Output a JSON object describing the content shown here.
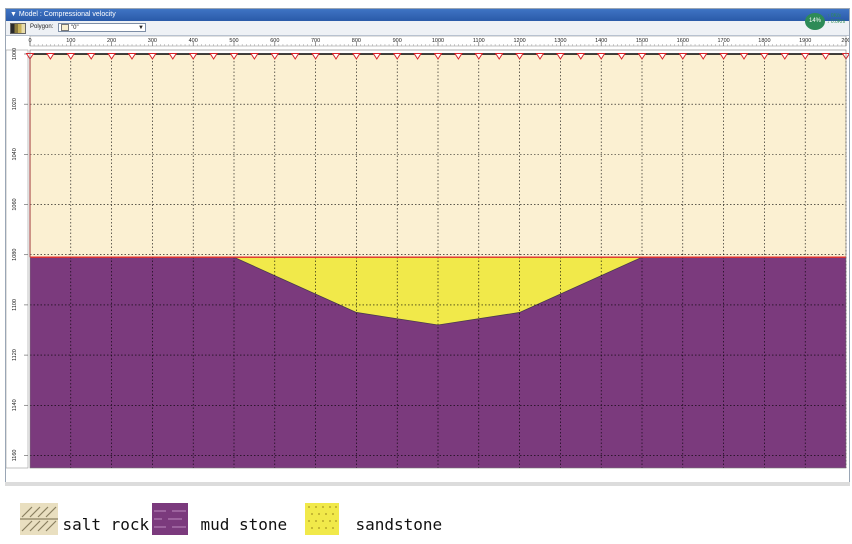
{
  "window": {
    "title": "▼ Model : Compressional velocity",
    "toolbar": {
      "polygon_label": "Polygon:",
      "polygon_value": "\"0\""
    },
    "status": {
      "percent": "14%",
      "rate_up": "0K/s",
      "rate_down": "0.0K/s"
    }
  },
  "plot": {
    "x_ticks": [
      "0",
      "100",
      "200",
      "300",
      "400",
      "500",
      "600",
      "700",
      "800",
      "900",
      "1000",
      "1100",
      "1200",
      "1300",
      "1400",
      "1500",
      "1600",
      "1700",
      "1800",
      "1900",
      "200"
    ],
    "y_ticks": [
      "1000",
      "1020",
      "1040",
      "1060",
      "1080",
      "1100",
      "1120",
      "1140",
      "1160"
    ],
    "layers": [
      {
        "name": "salt rock",
        "color": "#fbf0d2"
      },
      {
        "name": "mud stone",
        "color": "#7b3a7d"
      },
      {
        "name": "sandstone",
        "color": "#f1e94a"
      }
    ],
    "colors": {
      "boundary": "#e4312b",
      "grid": "#000000",
      "receiver": "#d9232a"
    }
  },
  "legend": [
    {
      "label": "salt rock",
      "icon": "salt-rock-swatch-icon"
    },
    {
      "label": "mud stone",
      "icon": "mud-stone-swatch-icon"
    },
    {
      "label": "sandstone",
      "icon": "sandstone-swatch-icon"
    }
  ]
}
